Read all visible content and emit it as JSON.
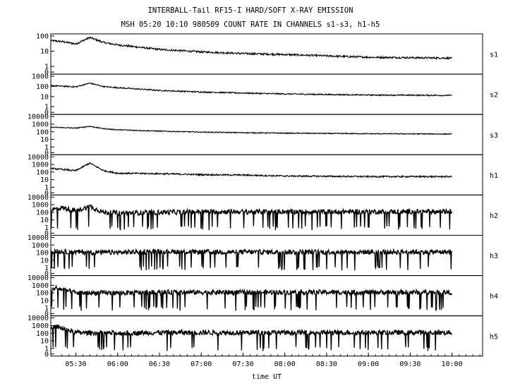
{
  "title_line1": "INTERBALL-Tail RF15-I HARD/SOFT X-RAY EMISSION",
  "title_line2": "MSH 05:20 10:10 980509  COUNT RATE IN CHANNELS s1-s3, h1-h5",
  "chart_data": {
    "type": "line",
    "xlabel": "time UT",
    "x_ticks": [
      "05:30",
      "06:00",
      "06:30",
      "07:00",
      "07:30",
      "08:00",
      "08:30",
      "09:00",
      "09:30",
      "10:00"
    ],
    "x_range": [
      "05:12",
      "10:22"
    ],
    "data_range": [
      "05:12",
      "10:00"
    ],
    "y_scale": "log",
    "grid": false,
    "panels": [
      {
        "name": "s1",
        "y_ticks": [
          "100",
          "10",
          "1",
          "0"
        ],
        "ymax": 100,
        "samples": [
          [
            "05:12",
            50
          ],
          [
            "05:20",
            43
          ],
          [
            "05:30",
            30
          ],
          [
            "05:40",
            80
          ],
          [
            "05:50",
            37
          ],
          [
            "06:00",
            26
          ],
          [
            "06:30",
            13
          ],
          [
            "07:00",
            9
          ],
          [
            "07:30",
            7
          ],
          [
            "08:00",
            6
          ],
          [
            "09:00",
            4
          ],
          [
            "10:00",
            3.5
          ]
        ]
      },
      {
        "name": "s2",
        "y_ticks": [
          "1000",
          "100",
          "10",
          "1",
          "0"
        ],
        "ymax": 1000,
        "samples": [
          [
            "05:12",
            120
          ],
          [
            "05:30",
            90
          ],
          [
            "05:40",
            210
          ],
          [
            "05:50",
            95
          ],
          [
            "06:00",
            75
          ],
          [
            "06:30",
            40
          ],
          [
            "07:00",
            28
          ],
          [
            "07:30",
            22
          ],
          [
            "08:00",
            18
          ],
          [
            "09:00",
            14
          ],
          [
            "10:00",
            13
          ]
        ]
      },
      {
        "name": "s3",
        "y_ticks": [
          "10000",
          "1000",
          "100",
          "10",
          "1",
          "0"
        ],
        "ymax": 10000,
        "samples": [
          [
            "05:12",
            400
          ],
          [
            "05:30",
            300
          ],
          [
            "05:40",
            520
          ],
          [
            "05:50",
            250
          ],
          [
            "06:00",
            180
          ],
          [
            "06:30",
            120
          ],
          [
            "07:00",
            90
          ],
          [
            "07:30",
            75
          ],
          [
            "08:00",
            65
          ],
          [
            "09:00",
            55
          ],
          [
            "10:00",
            50
          ]
        ]
      },
      {
        "name": "h1",
        "y_ticks": [
          "10000",
          "1000",
          "100",
          "10",
          "1",
          "0"
        ],
        "ymax": 10000,
        "samples": [
          [
            "05:12",
            300
          ],
          [
            "05:30",
            150
          ],
          [
            "05:40",
            1500
          ],
          [
            "05:50",
            150
          ],
          [
            "06:00",
            70
          ],
          [
            "06:30",
            60
          ],
          [
            "07:00",
            45
          ],
          [
            "07:30",
            40
          ],
          [
            "08:00",
            30
          ],
          [
            "09:00",
            25
          ],
          [
            "10:00",
            25
          ]
        ]
      },
      {
        "name": "h2",
        "y_ticks": [
          "10000",
          "1000",
          "100",
          "10",
          "1",
          "0"
        ],
        "ymax": 10000,
        "samples": [
          [
            "05:12",
            200
          ],
          [
            "05:20",
            400
          ],
          [
            "05:30",
            150
          ],
          [
            "05:40",
            600
          ],
          [
            "05:50",
            100
          ],
          [
            "06:00",
            80
          ],
          [
            "07:00",
            120
          ],
          [
            "08:00",
            120
          ],
          [
            "09:00",
            120
          ],
          [
            "10:00",
            120
          ]
        ]
      },
      {
        "name": "h3",
        "y_ticks": [
          "10000",
          "1000",
          "100",
          "10",
          "1",
          "0"
        ],
        "ymax": 10000,
        "samples": [
          [
            "05:12",
            150
          ],
          [
            "05:30",
            120
          ],
          [
            "06:00",
            100
          ],
          [
            "06:30",
            150
          ],
          [
            "07:00",
            120
          ],
          [
            "08:00",
            120
          ],
          [
            "09:00",
            120
          ],
          [
            "10:00",
            120
          ]
        ]
      },
      {
        "name": "h4",
        "y_ticks": [
          "10000",
          "1000",
          "100",
          "10",
          "1",
          "0"
        ],
        "ymax": 10000,
        "samples": [
          [
            "05:12",
            150
          ],
          [
            "05:15",
            500
          ],
          [
            "05:30",
            100
          ],
          [
            "06:00",
            100
          ],
          [
            "06:30",
            120
          ],
          [
            "07:00",
            120
          ],
          [
            "08:00",
            120
          ],
          [
            "09:00",
            120
          ],
          [
            "10:00",
            120
          ]
        ]
      },
      {
        "name": "h5",
        "y_ticks": [
          "10000",
          "1000",
          "100",
          "10",
          "1",
          "0"
        ],
        "ymax": 10000,
        "samples": [
          [
            "05:12",
            300
          ],
          [
            "05:15",
            800
          ],
          [
            "05:30",
            120
          ],
          [
            "06:00",
            100
          ],
          [
            "06:30",
            120
          ],
          [
            "07:00",
            120
          ],
          [
            "08:00",
            120
          ],
          [
            "09:00",
            120
          ],
          [
            "10:00",
            120
          ]
        ]
      }
    ]
  }
}
